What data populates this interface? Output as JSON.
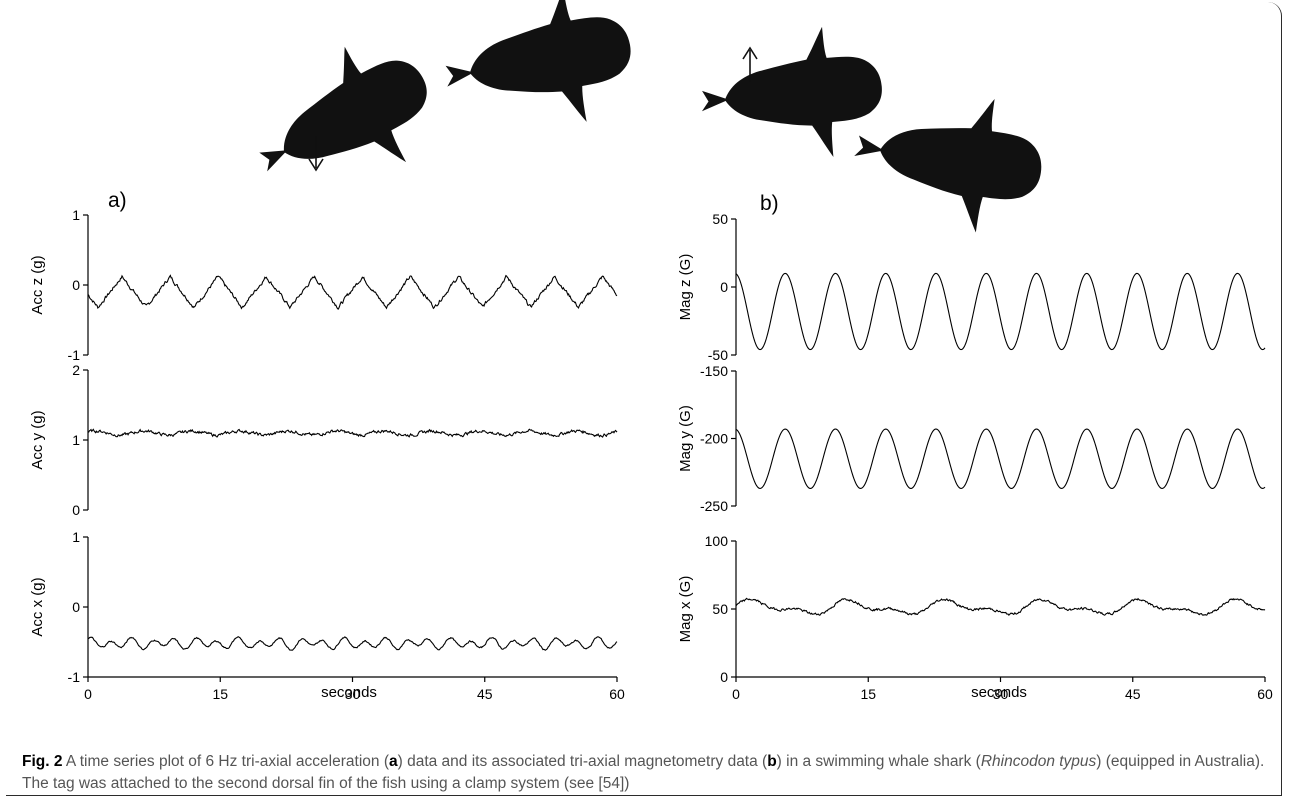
{
  "figure": {
    "panel_a_label": "a)",
    "panel_b_label": "b)",
    "xlabel": "seconds"
  },
  "caption": {
    "fig_label": "Fig. 2",
    "part1": " A time series plot of 6 Hz tri-axial acceleration (",
    "bold_a": "a",
    "part2": ") data and its associated tri-axial magnetometry data (",
    "bold_b": "b",
    "part3": ") in a swimming whale shark (",
    "species": "Rhincodon typus",
    "part4": ") (equipped in Australia). The tag was attached to the second dorsal fin of the fish using a clamp system (see [54])"
  },
  "illustration": {
    "icons": [
      "shark-diving-icon",
      "shark-level-icon",
      "shark-rising-icon",
      "shark-turning-icon"
    ],
    "arrows": [
      "arrow-down-icon",
      "arrow-up-icon"
    ]
  },
  "chart_data": [
    {
      "type": "line",
      "panel": "a",
      "name": "acc-z",
      "ylabel": "Acc z",
      "yunit": "(g)",
      "xlim": [
        0,
        60
      ],
      "ylim": [
        -1,
        1
      ],
      "xticks": [
        "0",
        "15",
        "30",
        "45",
        "60"
      ],
      "yticks": [
        "-1",
        "0",
        "1"
      ],
      "ytick_values": [
        -1,
        0,
        1
      ],
      "signal": {
        "offset": -0.1,
        "amp": 0.22,
        "period": 5.45,
        "phase": 3.4,
        "noise": 0.035,
        "peaks_sharp": true
      },
      "show_xaxis": false
    },
    {
      "type": "line",
      "panel": "a",
      "name": "acc-y",
      "ylabel": "Acc y",
      "yunit": "(g)",
      "xlim": [
        0,
        60
      ],
      "ylim": [
        0,
        2
      ],
      "xticks": [
        "0",
        "15",
        "30",
        "45",
        "60"
      ],
      "yticks": [
        "0",
        "1",
        "2"
      ],
      "ytick_values": [
        0,
        1,
        2
      ],
      "signal": {
        "offset": 1.1,
        "amp": 0.03,
        "period": 5.45,
        "phase": 0.5,
        "noise": 0.03
      },
      "show_xaxis": false
    },
    {
      "type": "line",
      "panel": "a",
      "name": "acc-x",
      "ylabel": "Acc x",
      "yunit": "(g)",
      "xlim": [
        0,
        60
      ],
      "ylim": [
        -1,
        1
      ],
      "xticks": [
        "0",
        "15",
        "30",
        "45",
        "60"
      ],
      "yticks": [
        "-1",
        "0",
        "1"
      ],
      "ytick_values": [
        -1,
        0,
        1
      ],
      "signal": {
        "offset": -0.52,
        "amp": 0.06,
        "period": 2.4,
        "phase": 1.0,
        "noise": 0.015
      },
      "show_xaxis": true
    },
    {
      "type": "line",
      "panel": "b",
      "name": "mag-z",
      "ylabel": "Mag z",
      "yunit": "(G)",
      "xlim": [
        0,
        60
      ],
      "ylim": [
        -50,
        50
      ],
      "xticks": [
        "0",
        "15",
        "30",
        "45",
        "60"
      ],
      "yticks": [
        "-50",
        "0",
        "50"
      ],
      "ytick_values": [
        -50,
        0,
        50
      ],
      "signal": {
        "offset": -18,
        "amp": 28,
        "period": 5.7,
        "phase": 1.7,
        "noise": 0.0
      },
      "show_xaxis": false
    },
    {
      "type": "line",
      "panel": "b",
      "name": "mag-y",
      "ylabel": "Mag y",
      "yunit": "(G)",
      "xlim": [
        0,
        60
      ],
      "ylim": [
        -250,
        -150
      ],
      "xticks": [
        "0",
        "15",
        "30",
        "45",
        "60"
      ],
      "yticks": [
        "-250",
        "-200",
        "-150"
      ],
      "ytick_values": [
        -250,
        -200,
        -150
      ],
      "signal": {
        "offset": -215,
        "amp": 22,
        "period": 5.7,
        "phase": 1.7,
        "noise": 0.0
      },
      "show_xaxis": false
    },
    {
      "type": "line",
      "panel": "b",
      "name": "mag-x",
      "ylabel": "Mag x",
      "yunit": "(G)",
      "xlim": [
        0,
        60
      ],
      "ylim": [
        0,
        100
      ],
      "xticks": [
        "0",
        "15",
        "30",
        "45",
        "60"
      ],
      "yticks": [
        "0",
        "50",
        "100"
      ],
      "ytick_values": [
        0,
        50,
        100
      ],
      "signal": {
        "offset": 51,
        "amp": 4,
        "period": 11,
        "phase": 0.3,
        "noise": 1.2
      },
      "show_xaxis": true
    }
  ]
}
